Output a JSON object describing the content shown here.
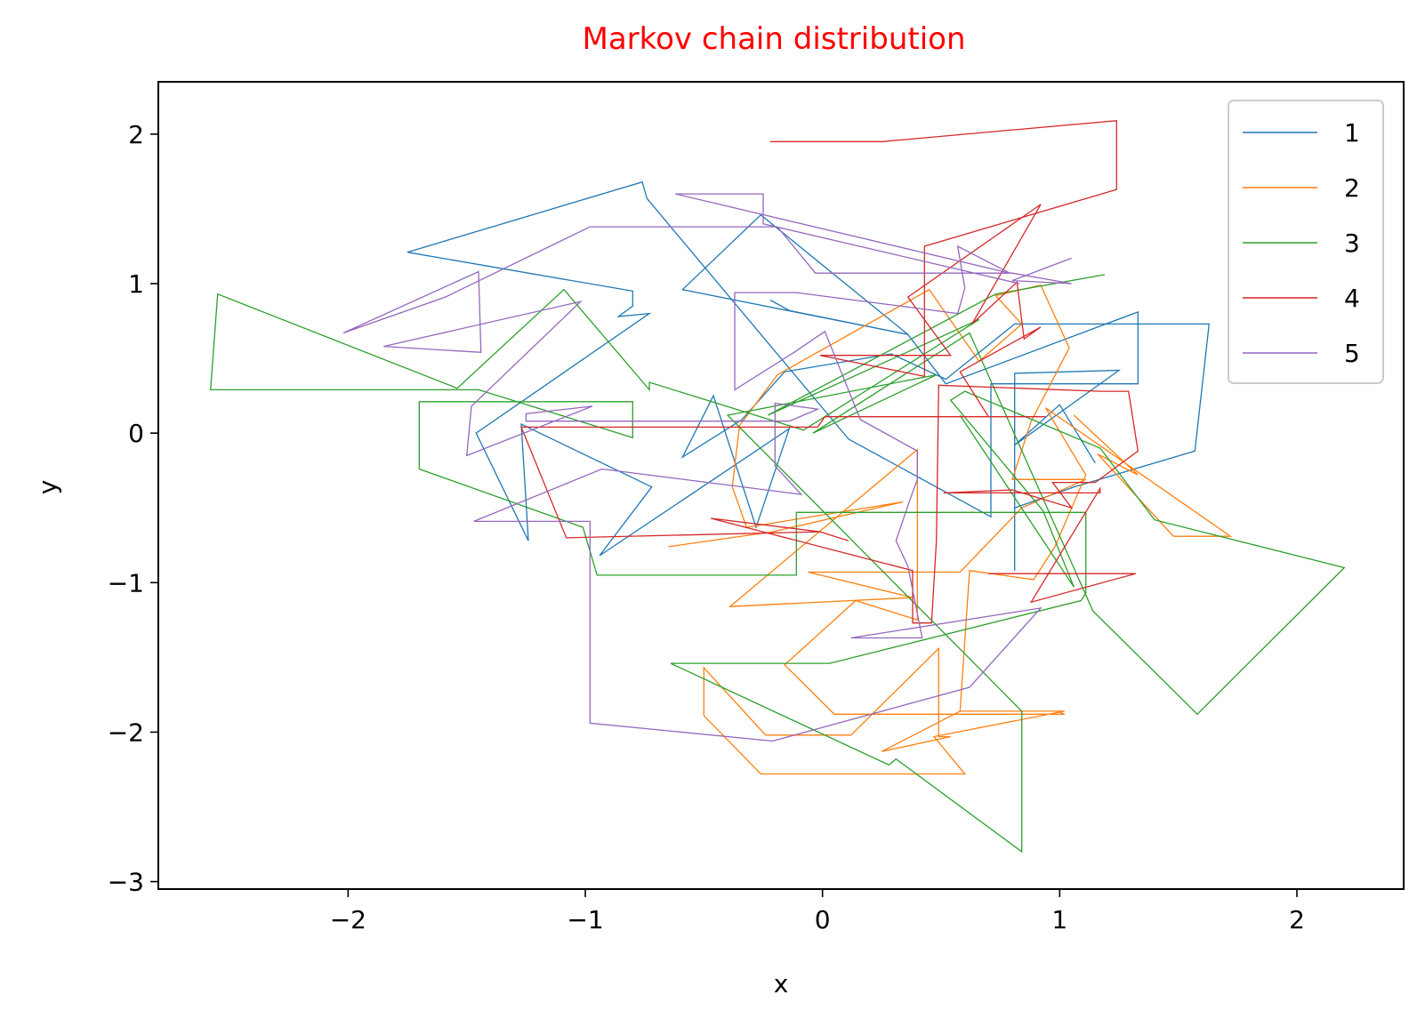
{
  "chart_data": {
    "type": "line",
    "title": "Markov chain distribution",
    "title_color": "#ff0000",
    "xlabel": "x",
    "ylabel": "y",
    "xlim": [
      -2.8,
      2.45
    ],
    "ylim": [
      -3.05,
      2.35
    ],
    "xticks": [
      -2,
      -1,
      0,
      1,
      2
    ],
    "xtick_labels": [
      "−2",
      "−1",
      "0",
      "1",
      "2"
    ],
    "yticks": [
      -3,
      -2,
      -1,
      0,
      1,
      2
    ],
    "ytick_labels": [
      "−3",
      "−2",
      "−1",
      "0",
      "1",
      "2"
    ],
    "grid": false,
    "legend_position": "top-right",
    "series": [
      {
        "name": "1",
        "color": "#1f77b4",
        "points": [
          [
            -0.22,
            0.89
          ],
          [
            -0.14,
            0.82
          ],
          [
            0.36,
            0.66
          ],
          [
            -0.59,
            0.96
          ],
          [
            -0.26,
            1.46
          ],
          [
            0.36,
            0.66
          ],
          [
            0.52,
            0.33
          ],
          [
            1.33,
            0.81
          ],
          [
            1.33,
            0.33
          ],
          [
            0.71,
            0.33
          ],
          [
            0.71,
            -0.56
          ],
          [
            0.11,
            -0.04
          ],
          [
            -0.74,
            1.57
          ],
          [
            -0.76,
            1.68
          ],
          [
            -1.75,
            1.21
          ],
          [
            -0.8,
            0.95
          ],
          [
            -0.8,
            0.85
          ],
          [
            -0.86,
            0.78
          ],
          [
            -0.73,
            0.8
          ],
          [
            -1.46,
            0.0
          ],
          [
            -1.24,
            -0.72
          ],
          [
            -1.27,
            0.06
          ],
          [
            -0.72,
            -0.36
          ],
          [
            -0.94,
            -0.82
          ],
          [
            -0.14,
            0.03
          ],
          [
            -0.28,
            -0.63
          ],
          [
            -0.46,
            0.25
          ],
          [
            -0.59,
            -0.16
          ],
          [
            -0.34,
            0.09
          ],
          [
            -0.16,
            0.41
          ],
          [
            0.29,
            0.53
          ],
          [
            0.52,
            0.36
          ],
          [
            0.81,
            0.73
          ],
          [
            1.63,
            0.73
          ],
          [
            1.57,
            -0.12
          ],
          [
            1.06,
            -0.36
          ],
          [
            0.81,
            -0.5
          ],
          [
            0.81,
            -0.92
          ],
          [
            0.81,
            0.4
          ],
          [
            1.25,
            0.42
          ],
          [
            0.81,
            -0.08
          ],
          [
            1.0,
            0.19
          ],
          [
            1.15,
            -0.2
          ]
        ]
      },
      {
        "name": "2",
        "color": "#ff7f0e",
        "points": [
          [
            -0.65,
            -0.76
          ],
          [
            -0.21,
            -0.66
          ],
          [
            0.34,
            -0.46
          ],
          [
            -0.32,
            -0.63
          ],
          [
            -0.38,
            -0.36
          ],
          [
            -0.35,
            0.05
          ],
          [
            -0.19,
            0.39
          ],
          [
            0.45,
            0.96
          ],
          [
            0.66,
            0.48
          ],
          [
            0.84,
            0.73
          ],
          [
            0.73,
            0.92
          ],
          [
            0.92,
            0.99
          ],
          [
            1.04,
            0.57
          ],
          [
            0.88,
            0.08
          ],
          [
            0.8,
            -0.31
          ],
          [
            1.11,
            -0.31
          ],
          [
            0.84,
            -0.5
          ],
          [
            0.58,
            -0.93
          ],
          [
            -0.06,
            -0.93
          ],
          [
            0.38,
            -1.1
          ],
          [
            -0.39,
            -1.16
          ],
          [
            0.4,
            -0.11
          ],
          [
            0.4,
            -1.25
          ],
          [
            0.14,
            -1.12
          ],
          [
            -0.16,
            -1.55
          ],
          [
            0.05,
            -1.88
          ],
          [
            1.02,
            -1.88
          ],
          [
            0.99,
            -1.86
          ],
          [
            0.58,
            -1.86
          ],
          [
            0.25,
            -2.13
          ],
          [
            0.54,
            -2.03
          ],
          [
            0.49,
            -2.03
          ],
          [
            0.49,
            -1.44
          ],
          [
            0.12,
            -2.02
          ],
          [
            -0.24,
            -2.02
          ],
          [
            -0.5,
            -1.57
          ],
          [
            -0.5,
            -1.89
          ],
          [
            -0.26,
            -2.28
          ],
          [
            0.6,
            -2.28
          ],
          [
            0.47,
            -2.03
          ],
          [
            1.02,
            -1.86
          ],
          [
            0.58,
            -1.86
          ],
          [
            0.62,
            -0.92
          ],
          [
            0.89,
            -0.98
          ],
          [
            0.98,
            -0.76
          ],
          [
            1.11,
            -0.28
          ],
          [
            0.94,
            0.17
          ],
          [
            1.72,
            -0.69
          ],
          [
            1.48,
            -0.69
          ],
          [
            1.16,
            -0.14
          ],
          [
            1.33,
            -0.28
          ],
          [
            1.06,
            0.12
          ]
        ]
      },
      {
        "name": "3",
        "color": "#2ca02c",
        "points": [
          [
            1.19,
            1.06
          ],
          [
            0.73,
            0.93
          ],
          [
            -0.23,
            0.12
          ],
          [
            0.66,
            0.76
          ],
          [
            -0.08,
            0.02
          ],
          [
            -0.73,
            0.34
          ],
          [
            -0.73,
            0.29
          ],
          [
            -1.09,
            0.96
          ],
          [
            -1.54,
            0.3
          ],
          [
            -2.55,
            0.93
          ],
          [
            -2.58,
            0.29
          ],
          [
            -1.45,
            0.29
          ],
          [
            -0.8,
            -0.03
          ],
          [
            -0.8,
            0.21
          ],
          [
            -1.7,
            0.21
          ],
          [
            -1.7,
            -0.24
          ],
          [
            -1.01,
            -0.63
          ],
          [
            -0.95,
            -0.95
          ],
          [
            -0.11,
            -0.95
          ],
          [
            -0.11,
            -0.53
          ],
          [
            1.11,
            -0.53
          ],
          [
            1.11,
            -1.07
          ],
          [
            1.09,
            -1.12
          ],
          [
            0.03,
            -1.54
          ],
          [
            -0.64,
            -1.54
          ],
          [
            0.28,
            -2.22
          ],
          [
            0.31,
            -2.18
          ],
          [
            0.84,
            -2.8
          ],
          [
            0.84,
            -1.86
          ],
          [
            0.84,
            -1.86
          ],
          [
            -0.4,
            0.12
          ],
          [
            0.48,
            0.39
          ],
          [
            -0.04,
            0.0
          ],
          [
            0.62,
            0.67
          ],
          [
            1.14,
            -1.19
          ],
          [
            1.58,
            -1.88
          ],
          [
            2.2,
            -0.9
          ],
          [
            1.4,
            -0.58
          ],
          [
            1.17,
            -0.1
          ],
          [
            0.6,
            0.28
          ],
          [
            0.54,
            0.22
          ],
          [
            0.93,
            -0.52
          ],
          [
            1.06,
            -1.03
          ],
          [
            0.58,
            0.12
          ]
        ]
      },
      {
        "name": "4",
        "color": "#d62728",
        "points": [
          [
            -0.22,
            1.95
          ],
          [
            0.25,
            1.95
          ],
          [
            1.24,
            2.09
          ],
          [
            1.24,
            1.63
          ],
          [
            0.43,
            1.25
          ],
          [
            0.43,
            0.38
          ],
          [
            -0.01,
            0.52
          ],
          [
            0.54,
            0.52
          ],
          [
            0.36,
            0.91
          ],
          [
            0.92,
            1.53
          ],
          [
            0.63,
            0.73
          ],
          [
            0.82,
            1.01
          ],
          [
            0.85,
            0.63
          ],
          [
            0.92,
            0.71
          ],
          [
            0.58,
            0.41
          ],
          [
            0.7,
            0.11
          ],
          [
            0.94,
            0.11
          ],
          [
            0.01,
            0.11
          ],
          [
            -0.02,
            0.04
          ],
          [
            -1.27,
            0.04
          ],
          [
            -1.08,
            -0.7
          ],
          [
            -0.01,
            -0.66
          ],
          [
            0.11,
            -0.72
          ],
          [
            -0.01,
            -0.66
          ],
          [
            -0.47,
            -0.57
          ],
          [
            0.38,
            -0.92
          ],
          [
            0.38,
            -1.27
          ],
          [
            0.46,
            -1.27
          ],
          [
            0.48,
            -0.72
          ],
          [
            0.49,
            0.32
          ],
          [
            1.17,
            0.28
          ],
          [
            1.29,
            0.28
          ],
          [
            1.33,
            -0.12
          ],
          [
            1.15,
            -0.33
          ],
          [
            0.97,
            -0.33
          ],
          [
            1.05,
            -0.5
          ],
          [
            0.8,
            -0.38
          ],
          [
            0.51,
            -0.4
          ],
          [
            1.17,
            -0.4
          ],
          [
            1.17,
            -0.37
          ],
          [
            0.88,
            -1.13
          ],
          [
            1.32,
            -0.94
          ],
          [
            0.7,
            -0.94
          ]
        ]
      },
      {
        "name": "5",
        "color": "#9467bd",
        "points": [
          [
            1.05,
            1.17
          ],
          [
            0.8,
            1.02
          ],
          [
            1.05,
            1.0
          ],
          [
            0.8,
            1.07
          ],
          [
            -0.03,
            1.07
          ],
          [
            -0.19,
            1.38
          ],
          [
            -0.98,
            1.38
          ],
          [
            -1.59,
            0.91
          ],
          [
            -2.02,
            0.67
          ],
          [
            -1.45,
            1.08
          ],
          [
            -1.44,
            0.54
          ],
          [
            -1.85,
            0.58
          ],
          [
            -1.02,
            0.88
          ],
          [
            -1.48,
            0.18
          ],
          [
            -1.5,
            -0.15
          ],
          [
            -0.97,
            0.18
          ],
          [
            -1.25,
            0.13
          ],
          [
            -1.25,
            0.08
          ],
          [
            -0.14,
            0.08
          ],
          [
            -0.02,
            0.16
          ],
          [
            -0.2,
            0.2
          ],
          [
            -0.2,
            -0.22
          ],
          [
            -0.09,
            -0.41
          ],
          [
            -0.93,
            -0.24
          ],
          [
            -1.47,
            -0.59
          ],
          [
            -0.98,
            -0.59
          ],
          [
            -0.98,
            -1.94
          ],
          [
            -0.21,
            -2.06
          ],
          [
            0.62,
            -1.7
          ],
          [
            0.92,
            -1.17
          ],
          [
            0.12,
            -1.37
          ],
          [
            0.42,
            -1.37
          ],
          [
            0.36,
            -0.89
          ],
          [
            0.31,
            -0.72
          ],
          [
            0.37,
            -0.44
          ],
          [
            0.4,
            -0.31
          ],
          [
            0.4,
            -0.12
          ],
          [
            0.16,
            0.09
          ],
          [
            0.01,
            0.68
          ],
          [
            -0.12,
            0.54
          ],
          [
            -0.37,
            0.29
          ],
          [
            -0.37,
            0.94
          ],
          [
            -0.11,
            0.94
          ],
          [
            0.57,
            0.8
          ],
          [
            0.6,
            0.97
          ],
          [
            0.57,
            1.25
          ],
          [
            0.79,
            1.07
          ],
          [
            -0.62,
            1.6
          ],
          [
            -0.25,
            1.6
          ],
          [
            -0.25,
            1.4
          ],
          [
            0.83,
            1.0
          ]
        ]
      }
    ]
  }
}
